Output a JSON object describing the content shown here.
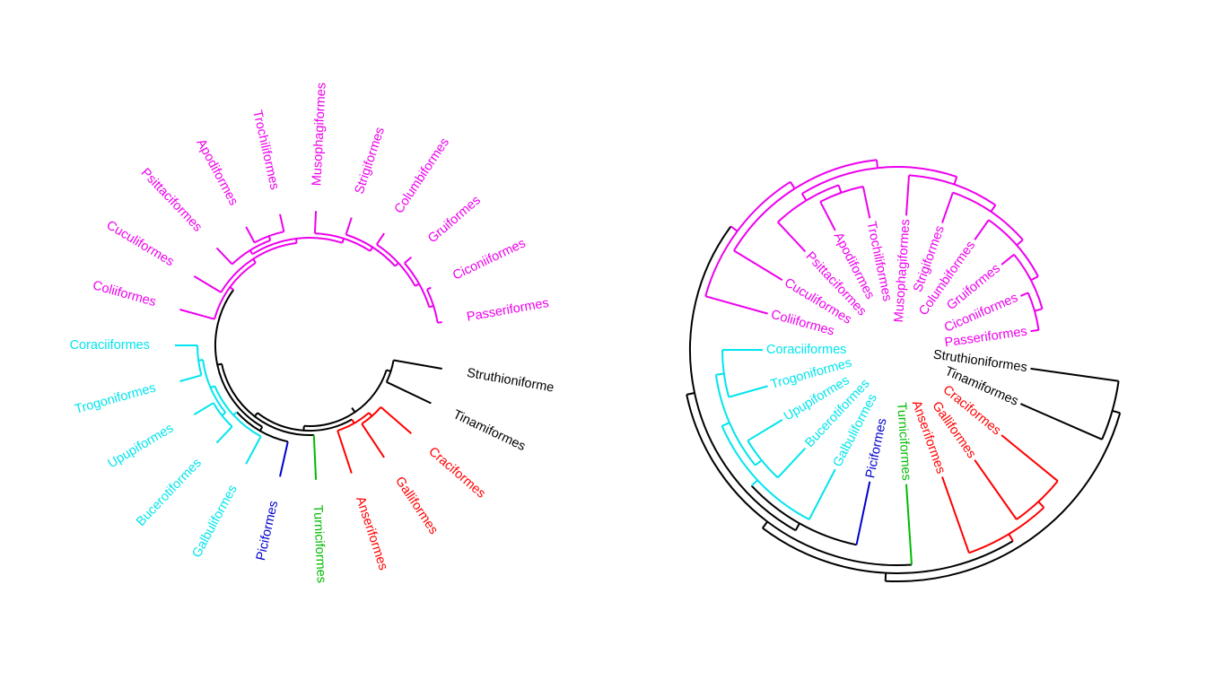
{
  "colors": {
    "black": "#000000",
    "red": "#ff0000",
    "green": "#00bb00",
    "blue": "#0000cc",
    "cyan": "#00e5ee",
    "magenta": "#ee00ee"
  },
  "taxa": [
    {
      "label": "Struthioniformes",
      "group": "black"
    },
    {
      "label": "Tinamiformes",
      "group": "black"
    },
    {
      "label": "Craciformes",
      "group": "red"
    },
    {
      "label": "Galliformes",
      "group": "red"
    },
    {
      "label": "Anseriformes",
      "group": "red"
    },
    {
      "label": "Turniciformes",
      "group": "green"
    },
    {
      "label": "Piciformes",
      "group": "blue"
    },
    {
      "label": "Galbuliformes",
      "group": "cyan"
    },
    {
      "label": "Bucerotiformes",
      "group": "cyan"
    },
    {
      "label": "Upupiformes",
      "group": "cyan"
    },
    {
      "label": "Trogoniformes",
      "group": "cyan"
    },
    {
      "label": "Coraciiformes",
      "group": "cyan"
    },
    {
      "label": "Coliiformes",
      "group": "magenta"
    },
    {
      "label": "Cuculiformes",
      "group": "magenta"
    },
    {
      "label": "Psittaciformes",
      "group": "magenta"
    },
    {
      "label": "Apodiformes",
      "group": "magenta"
    },
    {
      "label": "Trochiliformes",
      "group": "magenta"
    },
    {
      "label": "Musophagiformes",
      "group": "magenta"
    },
    {
      "label": "Strigiformes",
      "group": "magenta"
    },
    {
      "label": "Columbiformes",
      "group": "magenta"
    },
    {
      "label": "Gruiformes",
      "group": "magenta"
    },
    {
      "label": "Ciconiiformes",
      "group": "magenta"
    },
    {
      "label": "Passeriformes",
      "group": "magenta"
    }
  ],
  "left_tree_label_text": "Struthioniformes",
  "left_tree_clipped_label": "Struthioniforme"
}
